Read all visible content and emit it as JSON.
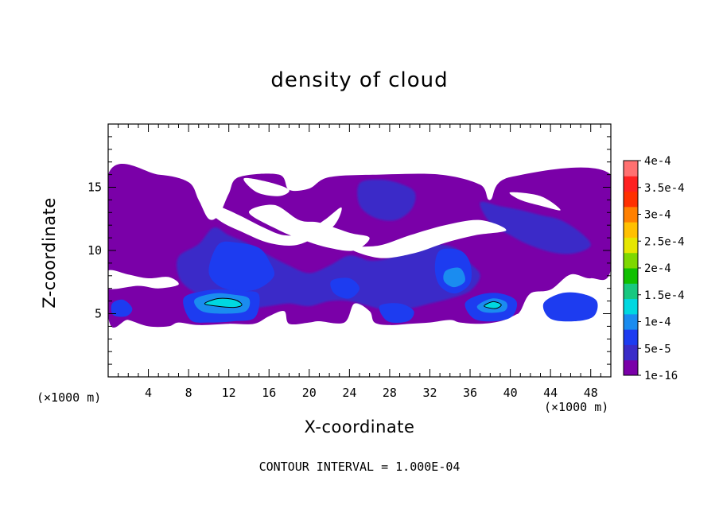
{
  "title": "density of cloud",
  "footnote": "CONTOUR INTERVAL = 1.000E-04",
  "chart_data": {
    "type": "heatmap",
    "title": "density of cloud",
    "xlabel": "X-coordinate",
    "ylabel": "Z-coordinate",
    "x_unit_left": "(×1000 m)",
    "x_unit_right": "(×1000 m)",
    "xlim": [
      0,
      50
    ],
    "ylim": [
      0,
      20
    ],
    "x_ticks": [
      4,
      8,
      12,
      16,
      20,
      24,
      28,
      32,
      36,
      40,
      44,
      48
    ],
    "y_ticks": [
      5,
      10,
      15
    ],
    "colorbar": {
      "levels": [
        "1e-16",
        "5e-5",
        "1e-4",
        "1.5e-4",
        "2e-4",
        "2.5e-4",
        "3e-4",
        "3.5e-4",
        "4e-4"
      ],
      "colors": [
        "#7a00a8",
        "#3a2cc8",
        "#1d3cf0",
        "#1a8cf0",
        "#00d8e0",
        "#18c880",
        "#10c000",
        "#7ed800",
        "#e6e600",
        "#ffc000",
        "#ff8000",
        "#ff3000",
        "#ff2020",
        "#ff7070"
      ]
    },
    "regions": [
      {
        "level": 0,
        "points": [
          [
            0,
            16
          ],
          [
            5,
            16
          ],
          [
            8,
            15.4
          ],
          [
            9,
            14
          ],
          [
            10,
            12.5
          ],
          [
            11,
            12.8
          ],
          [
            12,
            14.5
          ],
          [
            13,
            15.8
          ],
          [
            17,
            16
          ],
          [
            18,
            14.8
          ],
          [
            20,
            14.9
          ],
          [
            22,
            15.8
          ],
          [
            27,
            16
          ],
          [
            33,
            16
          ],
          [
            37,
            15.2
          ],
          [
            38,
            14
          ],
          [
            40,
            15.8
          ],
          [
            50,
            16
          ],
          [
            50,
            8.5
          ],
          [
            48,
            7.8
          ],
          [
            46,
            8.1
          ],
          [
            44,
            6.9
          ],
          [
            42,
            6.6
          ],
          [
            41,
            5.2
          ],
          [
            40.5,
            4.9
          ],
          [
            39,
            4.4
          ],
          [
            37,
            4.2
          ],
          [
            35,
            4.3
          ],
          [
            34,
            4.5
          ],
          [
            32,
            4.3
          ],
          [
            30,
            4.2
          ],
          [
            28,
            4.1
          ],
          [
            26.5,
            4.3
          ],
          [
            26,
            5.2
          ],
          [
            24.5,
            5.8
          ],
          [
            23.5,
            4.3
          ],
          [
            21,
            4.4
          ],
          [
            20,
            4.3
          ],
          [
            18,
            4.2
          ],
          [
            17.5,
            5.2
          ],
          [
            16,
            4.8
          ],
          [
            14.5,
            4.2
          ],
          [
            12,
            4.2
          ],
          [
            9,
            4.1
          ],
          [
            7,
            4.3
          ],
          [
            6,
            4.0
          ],
          [
            4,
            4.0
          ],
          [
            2,
            4.5
          ],
          [
            0,
            4.8
          ]
        ]
      },
      {
        "level": 1,
        "points": [
          [
            7,
            9.5
          ],
          [
            9,
            10.5
          ],
          [
            10.5,
            11.8
          ],
          [
            12,
            11.2
          ],
          [
            14,
            10.5
          ],
          [
            16,
            9.6
          ],
          [
            18,
            8.8
          ],
          [
            20,
            8.2
          ],
          [
            22,
            8.8
          ],
          [
            24,
            9.6
          ],
          [
            26,
            9.2
          ],
          [
            28,
            9.4
          ],
          [
            30,
            10.2
          ],
          [
            32,
            10.5
          ],
          [
            34.5,
            10.2
          ],
          [
            36,
            9
          ],
          [
            37,
            8
          ],
          [
            36,
            6.8
          ],
          [
            34,
            6.2
          ],
          [
            32,
            5.8
          ],
          [
            30,
            5.4
          ],
          [
            28,
            5.2
          ],
          [
            26,
            5.6
          ],
          [
            24,
            6.0
          ],
          [
            22,
            6.0
          ],
          [
            20,
            5.6
          ],
          [
            18,
            5.8
          ],
          [
            16,
            5.6
          ],
          [
            14,
            5.4
          ],
          [
            12,
            5.6
          ],
          [
            10,
            6.2
          ],
          [
            8,
            7.0
          ],
          [
            7,
            8
          ]
        ]
      },
      {
        "level": 1,
        "points": [
          [
            37,
            13.8
          ],
          [
            39,
            13.5
          ],
          [
            41,
            13.2
          ],
          [
            43,
            12.8
          ],
          [
            45,
            12.4
          ],
          [
            47,
            11.4
          ],
          [
            48,
            10.4
          ],
          [
            46.5,
            9.8
          ],
          [
            44.5,
            9.8
          ],
          [
            42,
            10.4
          ],
          [
            40,
            11.2
          ],
          [
            38,
            12.2
          ]
        ]
      },
      {
        "level": 1,
        "points": [
          [
            25,
            15.3
          ],
          [
            27,
            15.6
          ],
          [
            29,
            15.3
          ],
          [
            30.5,
            14.6
          ],
          [
            30.2,
            13.3
          ],
          [
            28.6,
            12.4
          ],
          [
            26.5,
            12.6
          ],
          [
            25,
            13.6
          ]
        ]
      },
      {
        "level": 2,
        "points": [
          [
            11,
            10.5
          ],
          [
            13,
            10.6
          ],
          [
            15,
            10.2
          ],
          [
            16,
            9.2
          ],
          [
            16.5,
            8.0
          ],
          [
            15,
            7.0
          ],
          [
            13,
            6.8
          ],
          [
            11,
            7.2
          ],
          [
            10,
            8.4
          ]
        ]
      },
      {
        "level": 2,
        "points": [
          [
            33,
            10
          ],
          [
            35,
            10
          ],
          [
            36,
            9
          ],
          [
            36,
            7.4
          ],
          [
            34.5,
            6.6
          ],
          [
            33,
            7.2
          ],
          [
            32.5,
            8.6
          ]
        ]
      },
      {
        "level": 2,
        "points": [
          [
            7.5,
            6.2
          ],
          [
            9.5,
            6.8
          ],
          [
            11.5,
            6.9
          ],
          [
            13.5,
            6.8
          ],
          [
            15,
            6.5
          ],
          [
            14.6,
            4.7
          ],
          [
            12.5,
            4.4
          ],
          [
            10,
            4.3
          ],
          [
            8.2,
            4.5
          ]
        ]
      },
      {
        "level": 2,
        "points": [
          [
            35.5,
            5.8
          ],
          [
            37,
            6.5
          ],
          [
            39,
            6.6
          ],
          [
            40.6,
            6.0
          ],
          [
            40.2,
            4.8
          ],
          [
            38.5,
            4.4
          ],
          [
            36.4,
            4.6
          ]
        ]
      },
      {
        "level": 2,
        "points": [
          [
            43.3,
            5.8
          ],
          [
            45,
            6.6
          ],
          [
            47,
            6.6
          ],
          [
            48.6,
            6.0
          ],
          [
            48.3,
            4.8
          ],
          [
            46.4,
            4.4
          ],
          [
            44,
            4.6
          ]
        ]
      },
      {
        "level": 2,
        "points": [
          [
            27,
            5.6
          ],
          [
            29,
            5.8
          ],
          [
            30.4,
            5.2
          ],
          [
            29.8,
            4.4
          ],
          [
            27.8,
            4.4
          ]
        ]
      },
      {
        "level": 2,
        "points": [
          [
            0.4,
            5.8
          ],
          [
            1.5,
            6.1
          ],
          [
            2.4,
            5.4
          ],
          [
            1.8,
            4.8
          ],
          [
            0.5,
            4.9
          ]
        ]
      },
      {
        "level": 2,
        "points": [
          [
            22.2,
            7.6
          ],
          [
            24,
            7.8
          ],
          [
            25,
            7.0
          ],
          [
            24,
            6.2
          ],
          [
            22.5,
            6.6
          ]
        ]
      },
      {
        "level": 3,
        "points": [
          [
            8.6,
            6.1
          ],
          [
            10.5,
            6.6
          ],
          [
            12.5,
            6.5
          ],
          [
            14,
            6.2
          ],
          [
            13.7,
            5.2
          ],
          [
            11.5,
            5.0
          ],
          [
            9.3,
            5.2
          ]
        ]
      },
      {
        "level": 3,
        "points": [
          [
            36.7,
            5.6
          ],
          [
            38.2,
            6.2
          ],
          [
            39.6,
            5.9
          ],
          [
            39.4,
            5.2
          ],
          [
            37.5,
            5.1
          ]
        ]
      },
      {
        "level": 3,
        "points": [
          [
            33.6,
            8.4
          ],
          [
            35,
            8.6
          ],
          [
            35.5,
            7.6
          ],
          [
            34.4,
            7.1
          ],
          [
            33.4,
            7.6
          ]
        ]
      },
      {
        "level": 4,
        "points": [
          [
            9.6,
            5.8
          ],
          [
            11,
            6.2
          ],
          [
            12.6,
            6.1
          ],
          [
            13.3,
            5.7
          ],
          [
            12.5,
            5.5
          ],
          [
            10.8,
            5.6
          ]
        ]
      },
      {
        "level": 4,
        "points": [
          [
            37.4,
            5.6
          ],
          [
            38.3,
            5.95
          ],
          [
            39.1,
            5.7
          ],
          [
            38.5,
            5.4
          ]
        ]
      }
    ],
    "holes": [
      {
        "points": [
          [
            9,
            14
          ],
          [
            11,
            13.5
          ],
          [
            13,
            12.8
          ],
          [
            15.5,
            11.8
          ],
          [
            17.5,
            11.2
          ],
          [
            19.5,
            11.4
          ],
          [
            21.5,
            12.4
          ],
          [
            23.2,
            13.4
          ],
          [
            22.5,
            12.0
          ],
          [
            20.5,
            11.0
          ],
          [
            18.5,
            10.4
          ],
          [
            16,
            10.6
          ],
          [
            13.5,
            11.4
          ],
          [
            11,
            12.4
          ]
        ]
      },
      {
        "points": [
          [
            13.5,
            15.7
          ],
          [
            16,
            15.4
          ],
          [
            18,
            14.8
          ],
          [
            17,
            14.3
          ],
          [
            14.8,
            14.6
          ]
        ]
      },
      {
        "points": [
          [
            14,
            13
          ],
          [
            16.5,
            13.6
          ],
          [
            19,
            12.4
          ],
          [
            21,
            12.2
          ],
          [
            24,
            11.4
          ],
          [
            26,
            11.0
          ],
          [
            24.5,
            10.0
          ],
          [
            22,
            10.2
          ],
          [
            19.5,
            10.8
          ],
          [
            17,
            11.6
          ]
        ]
      },
      {
        "points": [
          [
            24,
            10.2
          ],
          [
            27,
            10.4
          ],
          [
            30,
            11.2
          ],
          [
            33.5,
            12.0
          ],
          [
            37,
            12.4
          ],
          [
            39.6,
            11.6
          ],
          [
            36.5,
            11.2
          ],
          [
            33.5,
            10.6
          ],
          [
            30.5,
            9.8
          ],
          [
            27,
            9.4
          ]
        ]
      },
      {
        "points": [
          [
            40,
            14.6
          ],
          [
            43,
            14.3
          ],
          [
            45,
            13.2
          ],
          [
            43.2,
            13.5
          ],
          [
            41,
            14.0
          ]
        ]
      },
      {
        "points": [
          [
            0,
            8.4
          ],
          [
            2,
            8.1
          ],
          [
            4,
            7.8
          ],
          [
            6,
            7.9
          ],
          [
            7,
            7.3
          ],
          [
            5,
            7.0
          ],
          [
            3,
            7.2
          ],
          [
            0,
            7.0
          ]
        ]
      }
    ]
  }
}
